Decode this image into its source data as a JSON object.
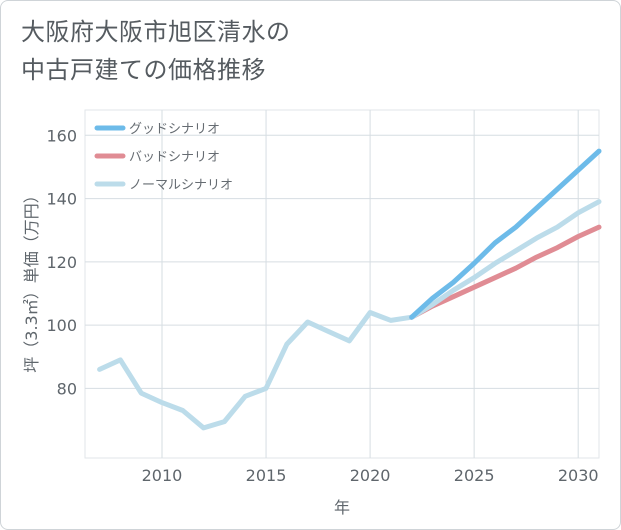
{
  "title_lines": [
    "大阪府大阪市旭区清水の",
    "中古戸建ての価格推移"
  ],
  "chart_data": {
    "type": "line",
    "xlabel": "年",
    "ylabel": "坪（3.3㎡）単価（万円）",
    "xlim": [
      2006.3,
      2031
    ],
    "ylim": [
      58,
      168
    ],
    "x_ticks": [
      2010,
      2015,
      2020,
      2025,
      2030
    ],
    "y_ticks": [
      80,
      100,
      120,
      140,
      160
    ],
    "grid": true,
    "legend_position": "top-left",
    "history": {
      "x": [
        2007,
        2008,
        2009,
        2010,
        2011,
        2012,
        2013,
        2014,
        2015,
        2016,
        2017,
        2018,
        2019,
        2020,
        2021,
        2022
      ],
      "values": [
        86,
        89,
        78.5,
        75.5,
        73,
        67.5,
        69.5,
        77.5,
        80,
        94,
        101,
        98,
        95,
        104,
        101.5,
        102.5
      ],
      "color": "#bcdcea"
    },
    "series": [
      {
        "name": "グッドシナリオ",
        "color": "#6dbbe9",
        "x": [
          2022,
          2023,
          2024,
          2025,
          2026,
          2027,
          2028,
          2029,
          2030,
          2031
        ],
        "values": [
          102.5,
          108.5,
          113.5,
          119.5,
          126,
          131,
          137,
          143,
          149,
          155
        ]
      },
      {
        "name": "バッドシナリオ",
        "color": "#e08c94",
        "x": [
          2022,
          2023,
          2024,
          2025,
          2026,
          2027,
          2028,
          2029,
          2030,
          2031
        ],
        "values": [
          102.5,
          106,
          109,
          112,
          115,
          118,
          121.5,
          124.5,
          128,
          131
        ]
      },
      {
        "name": "ノーマルシナリオ",
        "color": "#bcdcea",
        "x": [
          2022,
          2023,
          2024,
          2025,
          2026,
          2027,
          2028,
          2029,
          2030,
          2031
        ],
        "values": [
          102.5,
          106.5,
          111,
          115,
          119.5,
          123.5,
          127.5,
          131,
          135.5,
          139
        ]
      }
    ]
  }
}
